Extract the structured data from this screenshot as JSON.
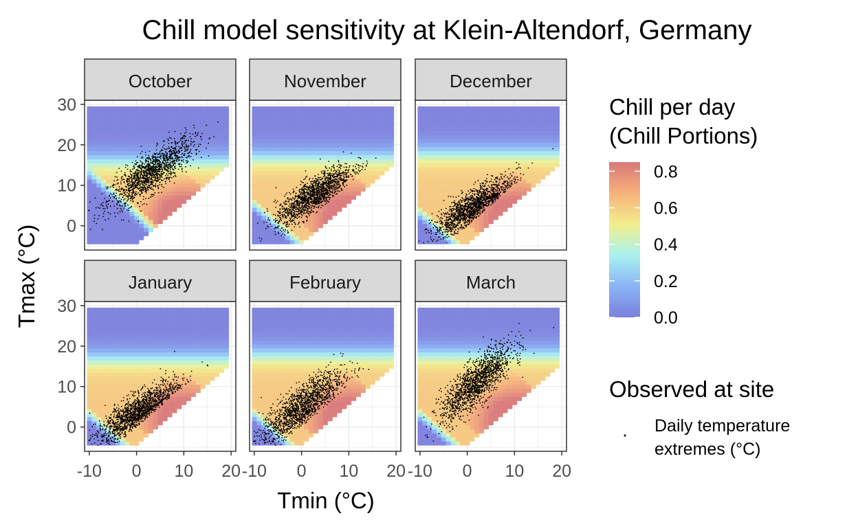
{
  "chart_data": {
    "type": "heatmap",
    "title": "Chill model sensitivity at Klein-Altendorf, Germany",
    "xlabel": "Tmin (°C)",
    "ylabel": "Tmax (°C)",
    "xlim": [
      -11,
      21
    ],
    "ylim": [
      -6,
      31
    ],
    "x_ticks": [
      -10,
      0,
      10,
      20
    ],
    "y_ticks": [
      0,
      10,
      20,
      30
    ],
    "grid": true,
    "facets": [
      "October",
      "November",
      "December",
      "January",
      "February",
      "March"
    ],
    "fill_scale": {
      "title": "Chill per day\n(Chill Portions)",
      "min": 0,
      "max": 0.85,
      "ticks": [
        0,
        0.2,
        0.4,
        0.6,
        0.8
      ],
      "colors": [
        "#7b7fdc",
        "#8ab4f6",
        "#a9f2f0",
        "#f3ee8c",
        "#f6b27a",
        "#d9787a"
      ]
    },
    "points_legend": {
      "title": "Observed at site",
      "label": "Daily temperature\nextremes (°C)",
      "color": "#000000"
    },
    "observed_clusters": [
      {
        "month": "October",
        "tmin_mean": 3,
        "tmax_mean": 13,
        "tmin_sd": 4.5,
        "tmax_sd": 4.5,
        "n": 1500
      },
      {
        "month": "November",
        "tmin_mean": 2.5,
        "tmax_mean": 7.5,
        "tmin_sd": 4,
        "tmax_sd": 4,
        "n": 1500
      },
      {
        "month": "December",
        "tmin_mean": 1,
        "tmax_mean": 4.5,
        "tmin_sd": 4,
        "tmax_sd": 3.8,
        "n": 1500
      },
      {
        "month": "January",
        "tmin_mean": 0,
        "tmax_mean": 3.5,
        "tmin_sd": 4.2,
        "tmax_sd": 4,
        "n": 1500
      },
      {
        "month": "February",
        "tmin_mean": 0,
        "tmax_mean": 5,
        "tmin_sd": 4.3,
        "tmax_sd": 4.8,
        "n": 1500
      },
      {
        "month": "March",
        "tmin_mean": 2,
        "tmax_mean": 11,
        "tmin_sd": 3.8,
        "tmax_sd": 5,
        "n": 1500
      }
    ]
  }
}
